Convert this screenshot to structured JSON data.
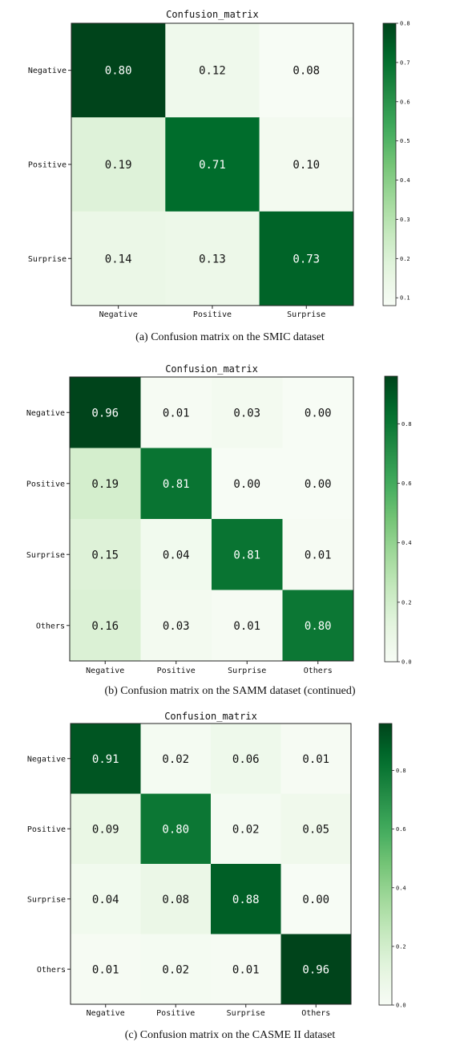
{
  "chart_data": [
    {
      "type": "heatmap",
      "title": "Confusion_matrix",
      "caption": "(a)  Confusion matrix on the SMIC dataset",
      "row_labels": [
        "Negative",
        "Positive",
        "Surprise"
      ],
      "col_labels": [
        "Negative",
        "Positive",
        "Surprise"
      ],
      "values": [
        [
          0.8,
          0.12,
          0.08
        ],
        [
          0.19,
          0.71,
          0.1
        ],
        [
          0.14,
          0.13,
          0.73
        ]
      ],
      "value_labels": [
        [
          "0.80",
          "0.12",
          "0.08"
        ],
        [
          "0.19",
          "0.71",
          "0.10"
        ],
        [
          "0.14",
          "0.13",
          "0.73"
        ]
      ],
      "colormap": "Greens",
      "color_range": [
        0.08,
        0.8
      ],
      "colorbar_ticks": [
        0.1,
        0.2,
        0.3,
        0.4,
        0.5,
        0.6,
        0.7,
        0.8
      ],
      "colorbar_tick_labels": [
        "0.1",
        "0.2",
        "0.3",
        "0.4",
        "0.5",
        "0.6",
        "0.7",
        "0.8"
      ]
    },
    {
      "type": "heatmap",
      "title": "Confusion_matrix",
      "caption": "(b)  Confusion matrix on the SAMM dataset (continued)",
      "row_labels": [
        "Negative",
        "Positive",
        "Surprise",
        "Others"
      ],
      "col_labels": [
        "Negative",
        "Positive",
        "Surprise",
        "Others"
      ],
      "values": [
        [
          0.96,
          0.01,
          0.03,
          0.0
        ],
        [
          0.19,
          0.81,
          0.0,
          0.0
        ],
        [
          0.15,
          0.04,
          0.81,
          0.01
        ],
        [
          0.16,
          0.03,
          0.01,
          0.8
        ]
      ],
      "value_labels": [
        [
          "0.96",
          "0.01",
          "0.03",
          "0.00"
        ],
        [
          "0.19",
          "0.81",
          "0.00",
          "0.00"
        ],
        [
          "0.15",
          "0.04",
          "0.81",
          "0.01"
        ],
        [
          "0.16",
          "0.03",
          "0.01",
          "0.80"
        ]
      ],
      "colormap": "Greens",
      "color_range": [
        0.0,
        0.96
      ],
      "colorbar_ticks": [
        0.0,
        0.2,
        0.4,
        0.6,
        0.8
      ],
      "colorbar_tick_labels": [
        "0.0",
        "0.2",
        "0.4",
        "0.6",
        "0.8"
      ]
    },
    {
      "type": "heatmap",
      "title": "Confusion_matrix",
      "caption": "(c)  Confusion matrix on the CASME II dataset",
      "row_labels": [
        "Negative",
        "Positive",
        "Surprise",
        "Others"
      ],
      "col_labels": [
        "Negative",
        "Positive",
        "Surprise",
        "Others"
      ],
      "values": [
        [
          0.91,
          0.02,
          0.06,
          0.01
        ],
        [
          0.09,
          0.8,
          0.02,
          0.05
        ],
        [
          0.04,
          0.08,
          0.88,
          0.0
        ],
        [
          0.01,
          0.02,
          0.01,
          0.96
        ]
      ],
      "value_labels": [
        [
          "0.91",
          "0.02",
          "0.06",
          "0.01"
        ],
        [
          "0.09",
          "0.80",
          "0.02",
          "0.05"
        ],
        [
          "0.04",
          "0.08",
          "0.88",
          "0.00"
        ],
        [
          "0.01",
          "0.02",
          "0.01",
          "0.96"
        ]
      ],
      "colormap": "Greens",
      "color_range": [
        0.0,
        0.96
      ],
      "colorbar_ticks": [
        0.0,
        0.2,
        0.4,
        0.6,
        0.8
      ],
      "colorbar_tick_labels": [
        "0.0",
        "0.2",
        "0.4",
        "0.6",
        "0.8"
      ]
    }
  ]
}
